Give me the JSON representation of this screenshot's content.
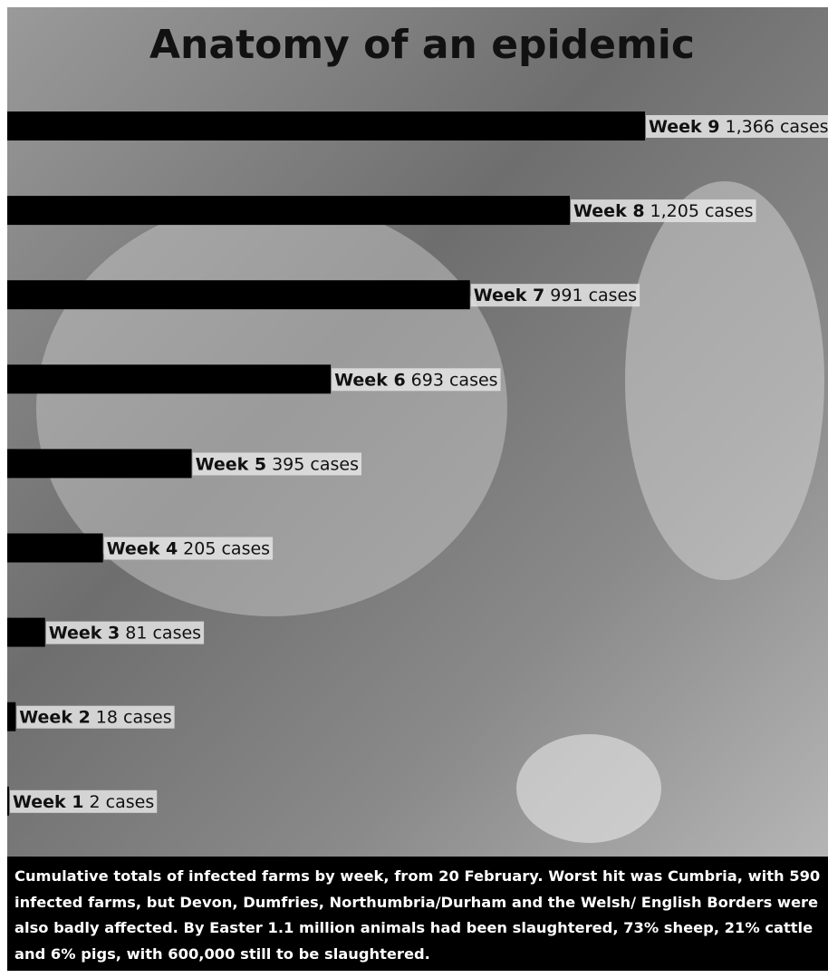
{
  "chart_data": {
    "type": "bar",
    "orientation": "horizontal",
    "title": "Anatomy of an epidemic",
    "categories": [
      "Week 9",
      "Week 8",
      "Week 7",
      "Week 6",
      "Week 5",
      "Week 4",
      "Week 3",
      "Week 2",
      "Week 1"
    ],
    "values": [
      1366,
      1205,
      991,
      693,
      395,
      205,
      81,
      18,
      2
    ],
    "value_labels": [
      "1,366 cases",
      "1,205 cases",
      "991 cases",
      "693 cases",
      "395 cases",
      "205 cases",
      "81 cases",
      "18 cases",
      "2 cases"
    ],
    "color": "#000000",
    "caption": "Cumulative totals of infected farms by week, from 20 February. Worst hit was Cumbria, with 590 infected farms, but Devon, Dumfries, Northumbria/Durham and the Welsh/ English Borders were also badly affected. By Easter 1.1 million animals had been slaughtered, 73% sheep, 21% cattle and 6% pigs, with 600,000 still to be slaughtered."
  }
}
